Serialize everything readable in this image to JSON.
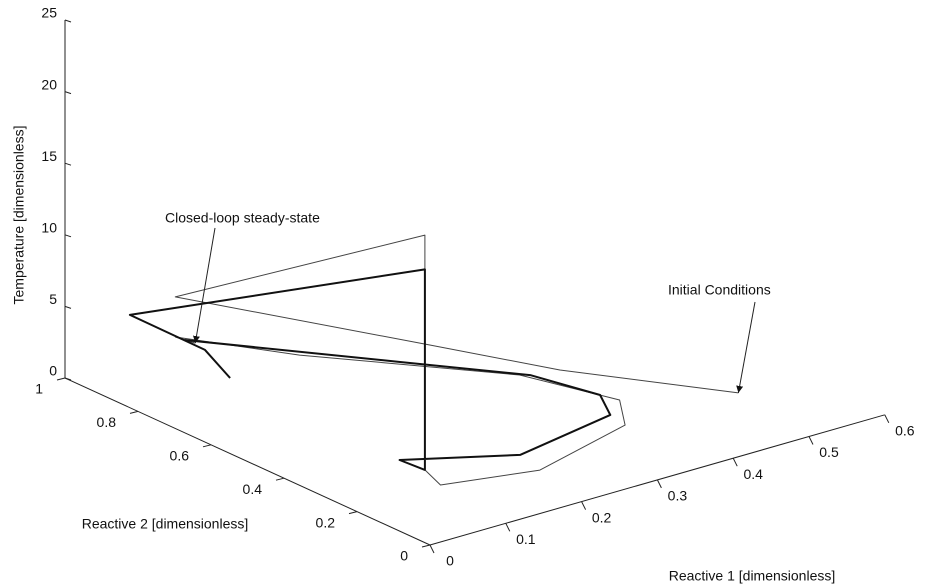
{
  "chart_data": {
    "type": "line3d",
    "xlabel": "Reactive 1 [dimensionless]",
    "ylabel": "Reactive 2 [dimensionless]",
    "zlabel": "Temperature [dimensionless]",
    "xlim": [
      0,
      0.6
    ],
    "xticks": [
      0,
      0.1,
      0.2,
      0.3,
      0.4,
      0.5,
      0.6
    ],
    "ylim": [
      0,
      1
    ],
    "yticks": [
      0,
      0.2,
      0.4,
      0.6,
      0.8,
      1
    ],
    "zlim": [
      0,
      25
    ],
    "zticks": [
      0,
      5,
      10,
      15,
      20,
      25
    ],
    "series": [
      {
        "color": "#444444",
        "linewidth": 1,
        "x": [
          0.52,
          0.365,
          0.253,
          0.081,
          0.129,
          0.129,
          0.115,
          0.222,
          0.371,
          0.411,
          0.349,
          0.193,
          0.137,
          0.155
        ],
        "y": [
          0.235,
          0.402,
          0.526,
          0.866,
          0.282,
          0.282,
          0.21,
          0.16,
          0.236,
          0.334,
          0.479,
          0.758,
          0.982,
          0.965
        ],
        "z": [
          0,
          2,
          4,
          6,
          16.4,
          0,
          0,
          0,
          0,
          0,
          1,
          1.5,
          1,
          0.5
        ]
      },
      {
        "color": "#111111",
        "linewidth": 2,
        "x": [
          0.134,
          0.138,
          0.063,
          0.129,
          0.129,
          0.126,
          0.233,
          0.377,
          0.404,
          0.37,
          0.275,
          0.139
        ],
        "y": [
          0.826,
          0.903,
          0.953,
          0.282,
          0.282,
          0.345,
          0.237,
          0.289,
          0.373,
          0.494,
          0.653,
          0.961
        ],
        "z": [
          0,
          1,
          4,
          14,
          0,
          0,
          0,
          0,
          0,
          0.5,
          1,
          1
        ]
      }
    ],
    "annotations": [
      "Closed-loop steady-state",
      "Initial Conditions"
    ]
  }
}
